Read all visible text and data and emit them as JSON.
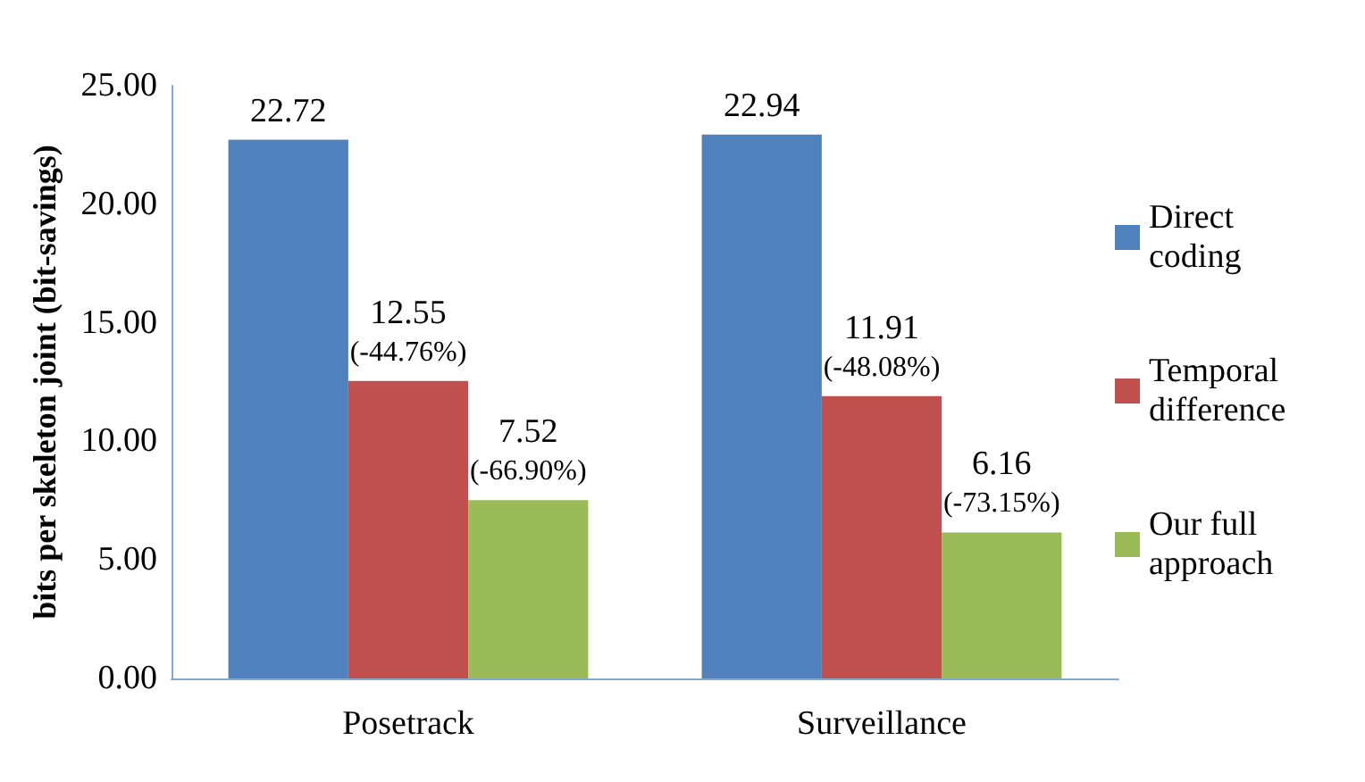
{
  "chart_data": {
    "type": "bar",
    "ylabel": "bits per skeleton joint (bit-savings)",
    "categories": [
      "Posetrack",
      "Surveillance"
    ],
    "series": [
      {
        "name": "Direct coding",
        "color": "#4f81bd",
        "values": [
          22.72,
          22.94
        ],
        "value_labels": [
          "22.72",
          "22.94"
        ]
      },
      {
        "name": "Temporal difference",
        "color": "#c0504d",
        "values": [
          12.55,
          11.91
        ],
        "value_labels": [
          "12.55\n(-44.76%)",
          "11.91\n(-48.08%)"
        ]
      },
      {
        "name": "Our full approach",
        "color": "#9bbb59",
        "values": [
          7.52,
          6.16
        ],
        "value_labels": [
          "7.52\n(-66.90%)",
          "6.16\n(-73.15%)"
        ]
      }
    ],
    "ylim": [
      0,
      25
    ],
    "yticks": [
      {
        "value": 0,
        "label": "0.00"
      },
      {
        "value": 5,
        "label": "5.00"
      },
      {
        "value": 10,
        "label": "10.00"
      },
      {
        "value": 15,
        "label": "15.00"
      },
      {
        "value": 20,
        "label": "20.00"
      },
      {
        "value": 25,
        "label": "25.00"
      }
    ],
    "grid": false,
    "legend": "right"
  }
}
